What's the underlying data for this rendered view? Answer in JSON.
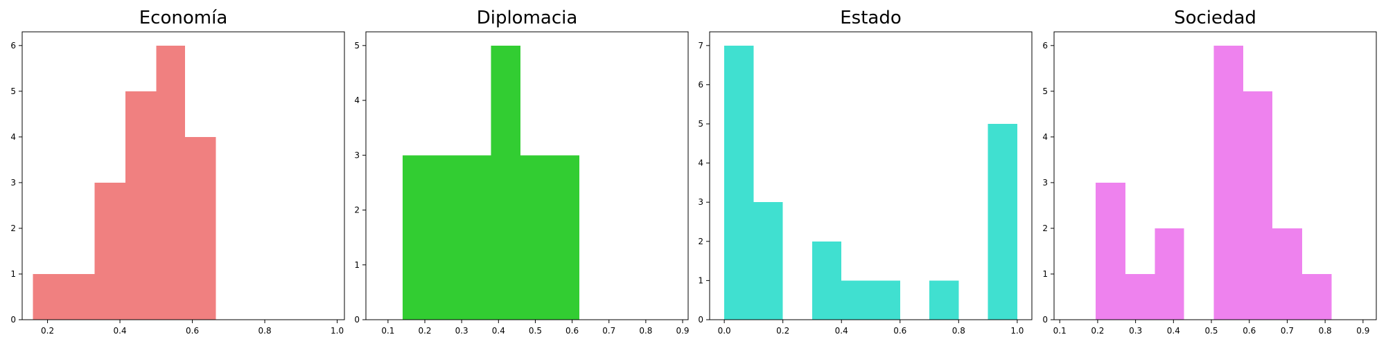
{
  "chart_data": [
    {
      "type": "bar",
      "title": "Economía",
      "color": "#f08080",
      "xlim": [
        0.13,
        1.02
      ],
      "ylim": [
        0,
        6.3
      ],
      "xticks": [
        0.2,
        0.4,
        0.6,
        0.8,
        1.0
      ],
      "xtick_labels": [
        "0.2",
        "0.4",
        "0.6",
        "0.8",
        "1.0"
      ],
      "yticks": [
        0,
        1,
        2,
        3,
        4,
        5,
        6
      ],
      "bins": [
        {
          "x0": 0.16,
          "x1": 0.245,
          "count": 1
        },
        {
          "x0": 0.245,
          "x1": 0.33,
          "count": 1
        },
        {
          "x0": 0.33,
          "x1": 0.415,
          "count": 3
        },
        {
          "x0": 0.415,
          "x1": 0.5,
          "count": 5
        },
        {
          "x0": 0.5,
          "x1": 0.58,
          "count": 6
        },
        {
          "x0": 0.58,
          "x1": 0.665,
          "count": 4
        }
      ]
    },
    {
      "type": "bar",
      "title": "Diplomacia",
      "color": "#32cd32",
      "xlim": [
        0.04,
        0.915
      ],
      "ylim": [
        0,
        5.25
      ],
      "xticks": [
        0.1,
        0.2,
        0.3,
        0.4,
        0.5,
        0.6,
        0.7,
        0.8,
        0.9
      ],
      "xtick_labels": [
        "0.1",
        "0.2",
        "0.3",
        "0.4",
        "0.5",
        "0.6",
        "0.7",
        "0.8",
        "0.9"
      ],
      "yticks": [
        0,
        1,
        2,
        3,
        4,
        5
      ],
      "bins": [
        {
          "x0": 0.14,
          "x1": 0.22,
          "count": 3
        },
        {
          "x0": 0.22,
          "x1": 0.3,
          "count": 3
        },
        {
          "x0": 0.3,
          "x1": 0.38,
          "count": 3
        },
        {
          "x0": 0.38,
          "x1": 0.46,
          "count": 5
        },
        {
          "x0": 0.46,
          "x1": 0.54,
          "count": 3
        },
        {
          "x0": 0.54,
          "x1": 0.62,
          "count": 3
        }
      ]
    },
    {
      "type": "bar",
      "title": "Estado",
      "color": "#40e0d0",
      "xlim": [
        -0.05,
        1.05
      ],
      "ylim": [
        0,
        7.35
      ],
      "xticks": [
        0.0,
        0.2,
        0.4,
        0.6,
        0.8,
        1.0
      ],
      "xtick_labels": [
        "0.0",
        "0.2",
        "0.4",
        "0.6",
        "0.8",
        "1.0"
      ],
      "yticks": [
        0,
        1,
        2,
        3,
        4,
        5,
        6,
        7
      ],
      "bins": [
        {
          "x0": 0.0,
          "x1": 0.1,
          "count": 7
        },
        {
          "x0": 0.1,
          "x1": 0.2,
          "count": 3
        },
        {
          "x0": 0.2,
          "x1": 0.3,
          "count": 0
        },
        {
          "x0": 0.3,
          "x1": 0.4,
          "count": 2
        },
        {
          "x0": 0.4,
          "x1": 0.5,
          "count": 1
        },
        {
          "x0": 0.5,
          "x1": 0.6,
          "count": 1
        },
        {
          "x0": 0.6,
          "x1": 0.7,
          "count": 0
        },
        {
          "x0": 0.7,
          "x1": 0.8,
          "count": 1
        },
        {
          "x0": 0.8,
          "x1": 0.9,
          "count": 0
        },
        {
          "x0": 0.9,
          "x1": 1.0,
          "count": 5
        }
      ]
    },
    {
      "type": "bar",
      "title": "Sociedad",
      "color": "#ee82ee",
      "xlim": [
        0.085,
        0.935
      ],
      "ylim": [
        0,
        6.3
      ],
      "xticks": [
        0.1,
        0.2,
        0.3,
        0.4,
        0.5,
        0.6,
        0.7,
        0.8,
        0.9
      ],
      "xtick_labels": [
        "0.1",
        "0.2",
        "0.3",
        "0.4",
        "0.5",
        "0.6",
        "0.7",
        "0.8",
        "0.9"
      ],
      "yticks": [
        0,
        1,
        2,
        3,
        4,
        5,
        6
      ],
      "bins": [
        {
          "x0": 0.195,
          "x1": 0.273,
          "count": 3
        },
        {
          "x0": 0.273,
          "x1": 0.351,
          "count": 1
        },
        {
          "x0": 0.351,
          "x1": 0.428,
          "count": 2
        },
        {
          "x0": 0.428,
          "x1": 0.506,
          "count": 0
        },
        {
          "x0": 0.506,
          "x1": 0.584,
          "count": 6
        },
        {
          "x0": 0.584,
          "x1": 0.661,
          "count": 5
        },
        {
          "x0": 0.661,
          "x1": 0.739,
          "count": 2
        },
        {
          "x0": 0.739,
          "x1": 0.817,
          "count": 1
        }
      ]
    }
  ]
}
